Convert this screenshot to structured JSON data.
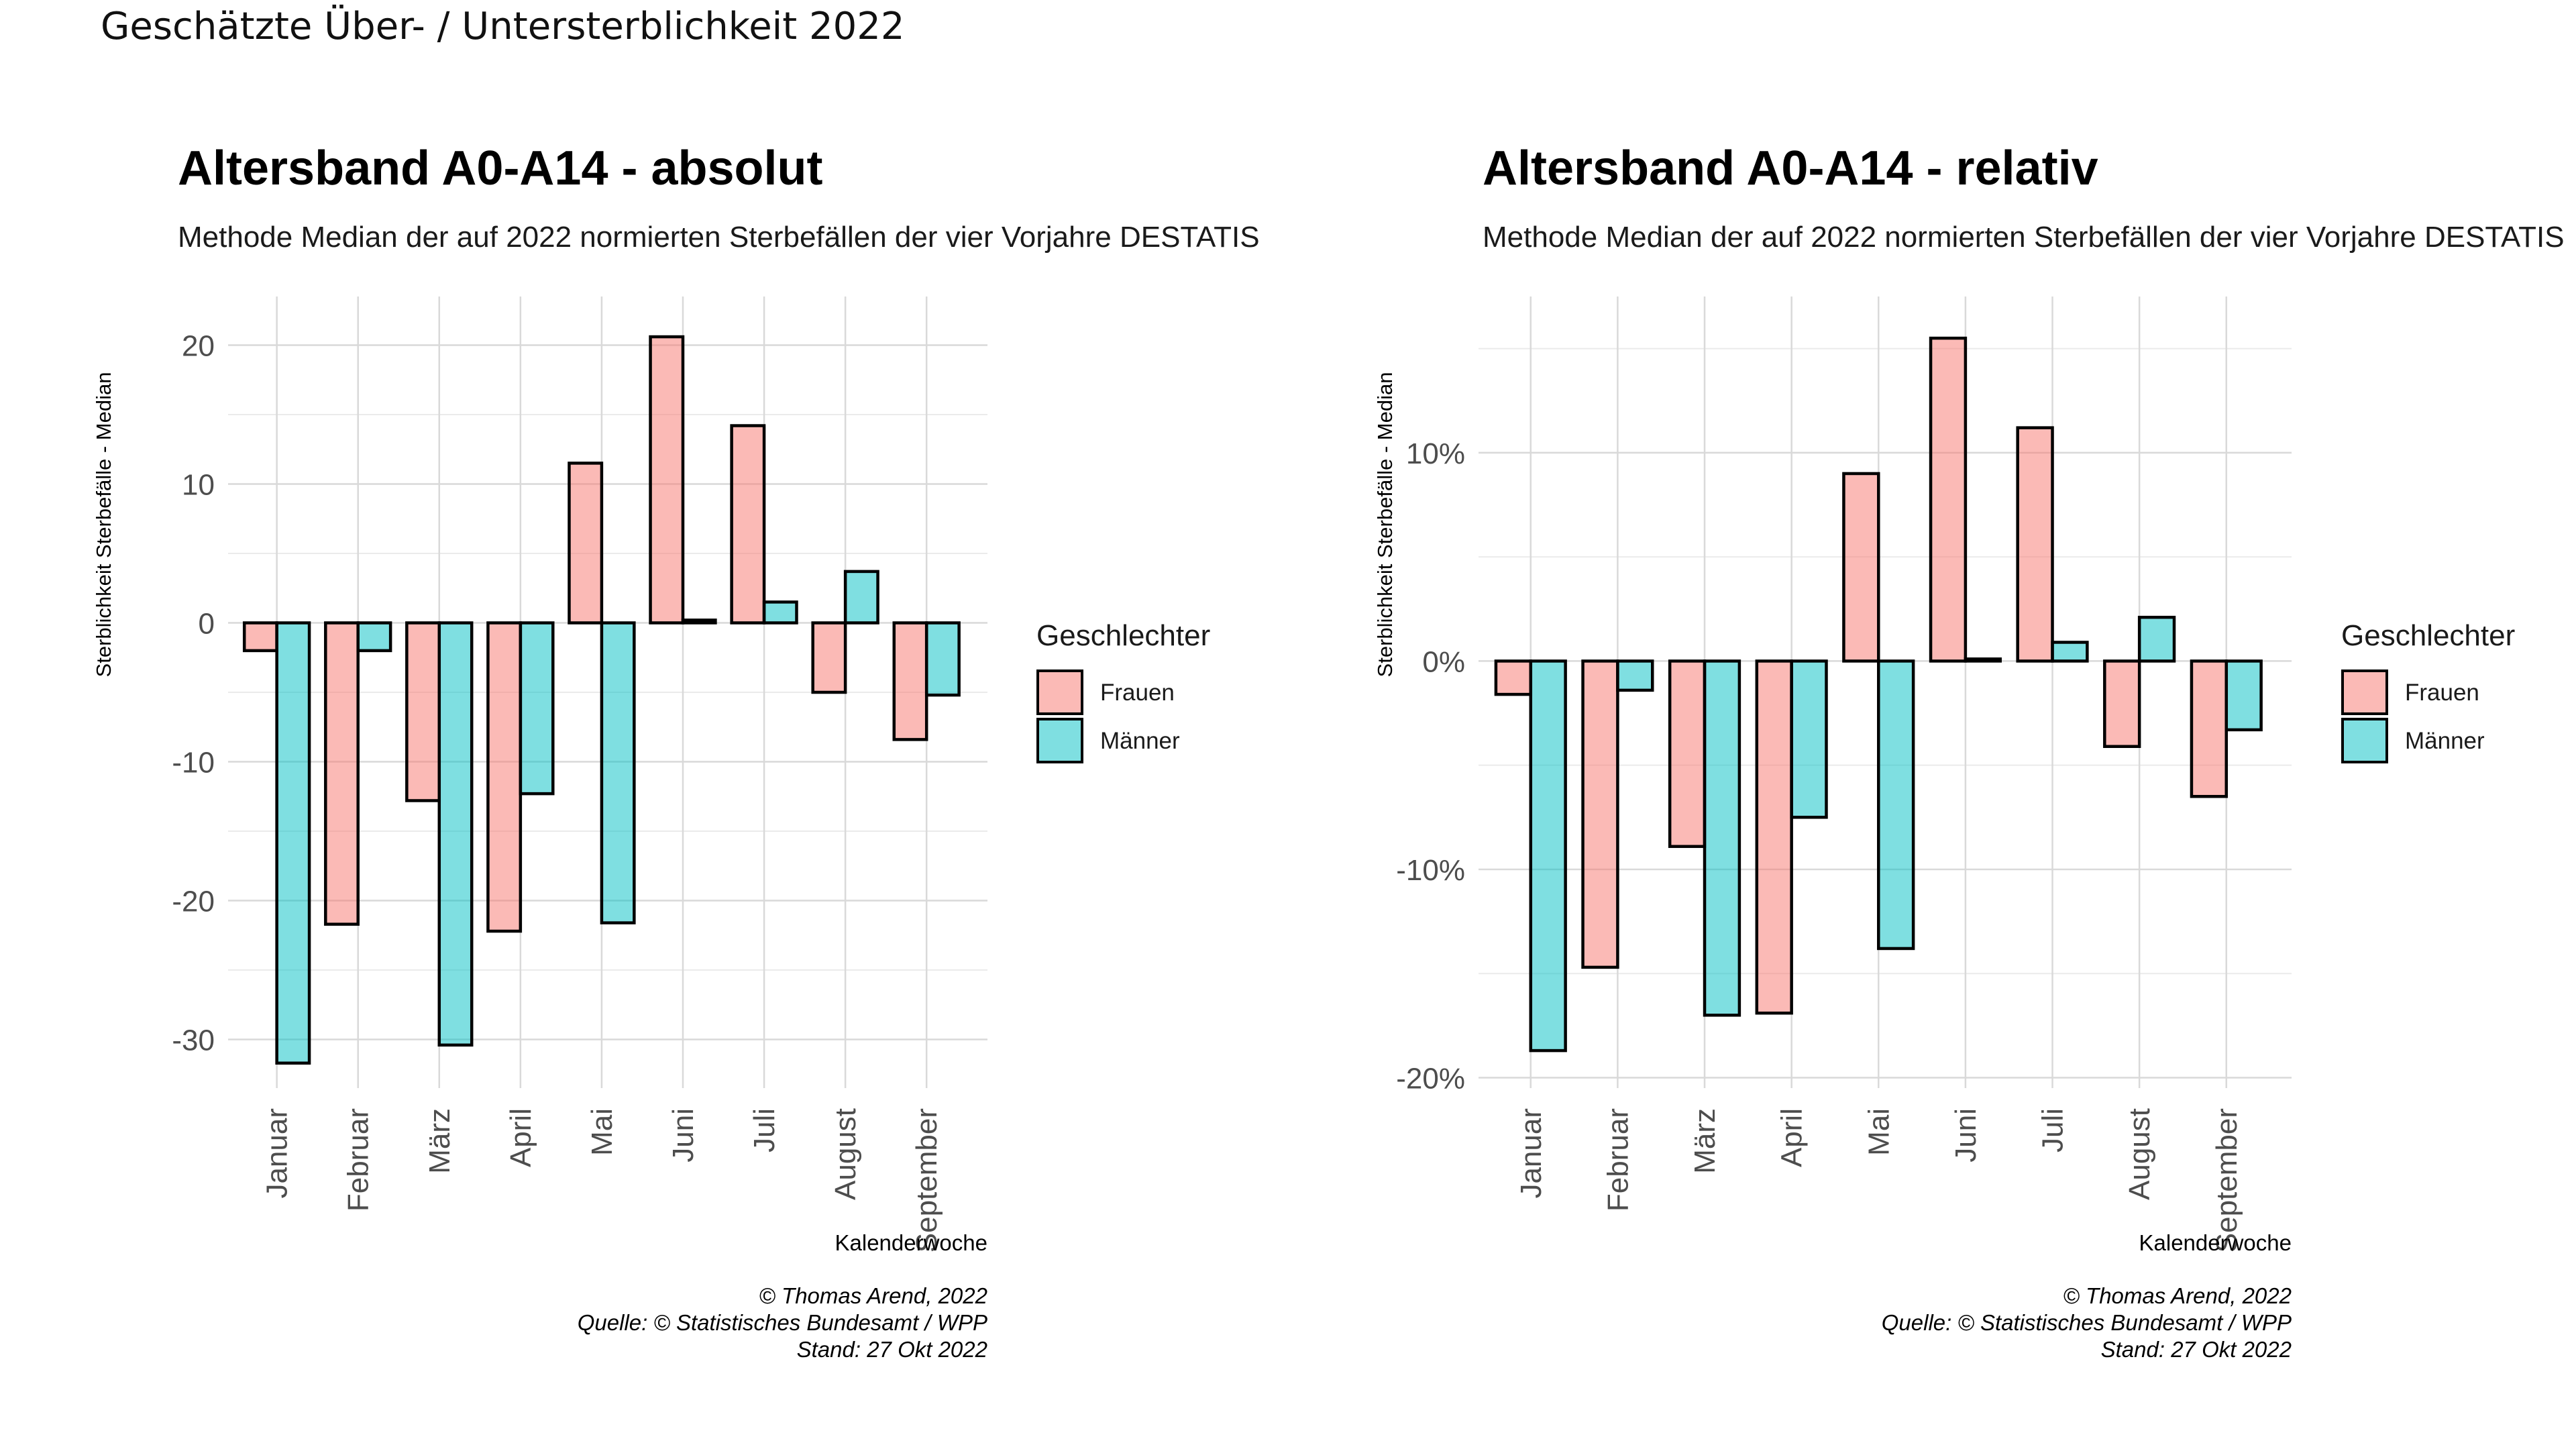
{
  "page": {
    "title": "Geschätzte Über- / Untersterblichkeit 2022"
  },
  "colors": {
    "Frauen": "#F8766D",
    "Männer": "#00BFC4",
    "bar_outline": "#000000"
  },
  "chart_data": [
    {
      "type": "bar",
      "title": "Altersband A0-A14 - absolut",
      "subtitle": "Methode Median der auf 2022 normierten Sterbefällen der vier Vorjahre DESTATIS",
      "xlabel": "Kalenderwoche",
      "ylabel": "Sterblichkeit Sterbefälle - Median",
      "categories": [
        "Januar",
        "Februar",
        "März",
        "April",
        "Mai",
        "Juni",
        "Juli",
        "August",
        "September"
      ],
      "series": [
        {
          "name": "Frauen",
          "values": [
            -2,
            -21.7,
            -12.8,
            -22.2,
            11.5,
            20.6,
            14.2,
            -5,
            -8.4
          ]
        },
        {
          "name": "Männer",
          "values": [
            -31.7,
            -2,
            -30.4,
            -12.3,
            -21.6,
            0.2,
            1.5,
            3.7,
            -5.2
          ]
        }
      ],
      "ylim": [
        -33.5,
        23.5
      ],
      "yticks": [
        -30,
        -20,
        -10,
        0,
        10,
        20
      ],
      "ytick_labels": [
        "-30",
        "-20",
        "-10",
        "0",
        "10",
        "20"
      ],
      "legend": {
        "title": "Geschlechter",
        "entries": [
          "Frauen",
          "Männer"
        ],
        "position": "right"
      },
      "grid": true,
      "caption": [
        "© Thomas Arend, 2022",
        "Quelle: © Statistisches Bundesamt / WPP",
        "Stand: 27 Okt 2022"
      ]
    },
    {
      "type": "bar",
      "title": "Altersband A0-A14 - relativ",
      "subtitle": "Methode Median der auf 2022 normierten Sterbefällen der vier Vorjahre DESTATIS",
      "xlabel": "Kalenderwoche",
      "ylabel": "Sterblichkeit Sterbefälle - Median",
      "categories": [
        "Januar",
        "Februar",
        "März",
        "April",
        "Mai",
        "Juni",
        "Juli",
        "August",
        "September"
      ],
      "series": [
        {
          "name": "Frauen",
          "values": [
            -1.6,
            -14.7,
            -8.9,
            -16.9,
            9.0,
            15.5,
            11.2,
            -4.1,
            -6.5
          ]
        },
        {
          "name": "Männer",
          "values": [
            -18.7,
            -1.4,
            -17.0,
            -7.5,
            -13.8,
            0.1,
            0.9,
            2.1,
            -3.3
          ]
        }
      ],
      "ylim": [
        -20.5,
        17.5
      ],
      "yticks": [
        -20,
        -10,
        0,
        10
      ],
      "ytick_labels": [
        "-20%",
        "-10%",
        "0%",
        "10%"
      ],
      "legend": {
        "title": "Geschlechter",
        "entries": [
          "Frauen",
          "Männer"
        ],
        "position": "right"
      },
      "grid": true,
      "caption": [
        "© Thomas Arend, 2022",
        "Quelle: © Statistisches Bundesamt / WPP",
        "Stand: 27 Okt 2022"
      ]
    }
  ]
}
